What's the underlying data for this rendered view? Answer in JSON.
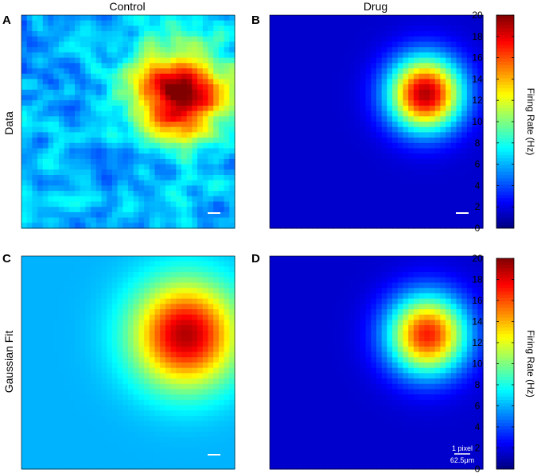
{
  "figure": {
    "column_titles": [
      "Control",
      "Drug"
    ],
    "row_labels": [
      "Data",
      "Gaussian Fit"
    ],
    "panel_letters": [
      "A",
      "B",
      "C",
      "D"
    ],
    "scale_bar": {
      "line1": "1 pixel",
      "line2": "62.5μm"
    }
  },
  "chart_data": [
    {
      "type": "heatmap",
      "panel": "A",
      "title": "Control",
      "ylabel": "Data",
      "colormap": "jet",
      "clim": [
        0,
        20
      ],
      "background_rate": 6,
      "peak_rate": 20,
      "peak_center_frac": [
        0.74,
        0.37
      ],
      "field_sigma_frac": 0.15,
      "noisy": true
    },
    {
      "type": "heatmap",
      "panel": "B",
      "title": "Drug",
      "colormap": "jet",
      "clim": [
        0,
        20
      ],
      "background_rate": 1.5,
      "peak_rate": 19,
      "peak_center_frac": [
        0.73,
        0.37
      ],
      "field_sigma_frac": 0.12,
      "noisy": false,
      "colorbar": {
        "label": "Firing Rate (Hz)",
        "ticks": [
          0,
          2,
          4,
          6,
          8,
          10,
          12,
          14,
          16,
          18,
          20
        ]
      }
    },
    {
      "type": "heatmap",
      "panel": "C",
      "ylabel": "Gaussian Fit",
      "colormap": "jet",
      "clim": [
        0,
        20
      ],
      "background_rate": 6,
      "peak_rate": 19,
      "peak_center_frac": [
        0.77,
        0.37
      ],
      "field_sigma_frac": 0.17,
      "noisy": false
    },
    {
      "type": "heatmap",
      "panel": "D",
      "colormap": "jet",
      "clim": [
        0,
        20
      ],
      "background_rate": 1.5,
      "peak_rate": 17,
      "peak_center_frac": [
        0.74,
        0.37
      ],
      "field_sigma_frac": 0.13,
      "noisy": false,
      "colorbar": {
        "label": "Firing Rate (Hz)",
        "ticks": [
          0,
          2,
          4,
          6,
          8,
          10,
          12,
          14,
          16,
          18,
          20
        ]
      }
    }
  ]
}
